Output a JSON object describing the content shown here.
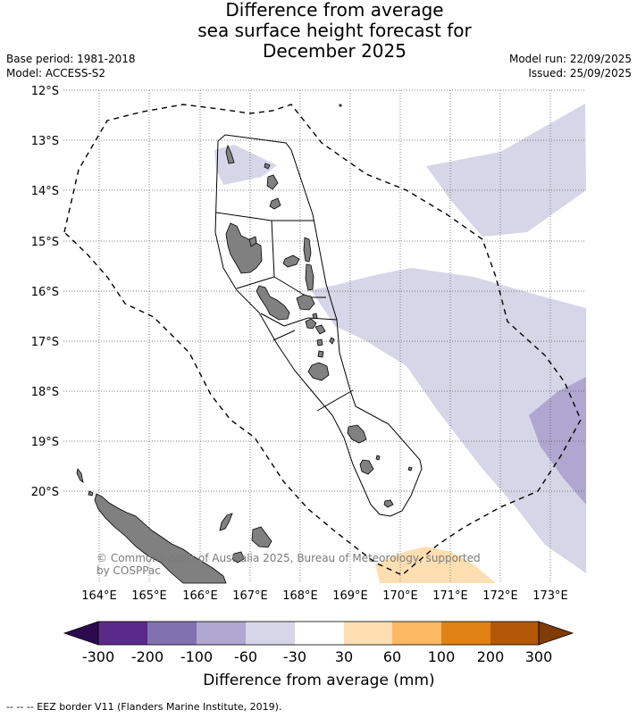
{
  "title": {
    "line1": "Difference from average",
    "line2": "sea surface height forecast for",
    "line3": "December 2025"
  },
  "meta": {
    "base_period": "Base period: 1981-2018",
    "model": "Model: ACCESS-S2",
    "model_run": "Model run: 22/09/2025",
    "issued": "Issued: 25/09/2025"
  },
  "map": {
    "lat_labels": [
      "12°S",
      "13°S",
      "14°S",
      "15°S",
      "16°S",
      "17°S",
      "18°S",
      "19°S",
      "20°S"
    ],
    "lon_labels": [
      "164°E",
      "165°E",
      "166°E",
      "167°E",
      "168°E",
      "169°E",
      "170°E",
      "171°E",
      "172°E",
      "173°E"
    ],
    "copyright_line1": "© Commonwealth of Australia 2025, Bureau of Meteorology, supported",
    "copyright_line2": "by COSPPac",
    "colors": {
      "land": "#808080",
      "anom_neg_light": "#d6d6e8",
      "anom_neg_mid": "#afa7d0",
      "anom_pos_light": "#ffdfb2"
    }
  },
  "colorbar": {
    "ticks": [
      "-300",
      "-200",
      "-100",
      "-60",
      "-30",
      "30",
      "60",
      "100",
      "200",
      "300"
    ],
    "label": "Difference from average (mm)",
    "colors": [
      "#2d0a4e",
      "#5a2a8a",
      "#8271b0",
      "#afa7d0",
      "#d6d6e8",
      "#ffffff",
      "#ffdfb2",
      "#fdb863",
      "#e08214",
      "#b35806",
      "#7f3b08"
    ]
  },
  "footer": "--  --  -- EEZ border V11 (Flanders Marine Institute, 2019)."
}
